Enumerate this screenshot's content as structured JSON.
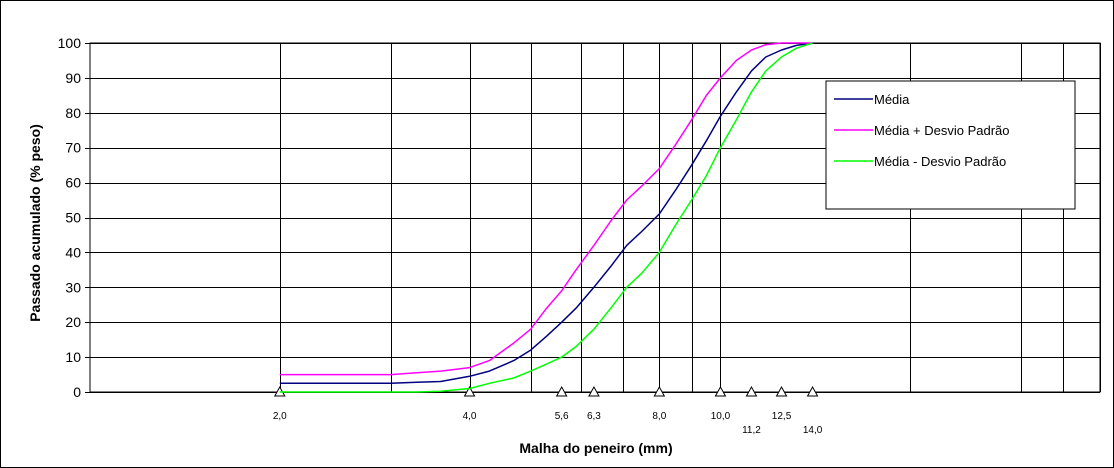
{
  "chart_data": {
    "type": "line",
    "title": "",
    "xlabel": "Malha do peneiro (mm)",
    "ylabel": "Passado acumulado (% peso)",
    "x_scale": "log",
    "xlim": [
      1.0,
      40.0
    ],
    "ylim": [
      0,
      100
    ],
    "y_ticks": [
      "0",
      "10",
      "20",
      "30",
      "40",
      "50",
      "60",
      "70",
      "80",
      "90",
      "100"
    ],
    "sieve_markers": [
      {
        "x": 2.0,
        "label": "2,0"
      },
      {
        "x": 4.0,
        "label": "4,0"
      },
      {
        "x": 5.6,
        "label": "5,6"
      },
      {
        "x": 6.3,
        "label": "6,3"
      },
      {
        "x": 8.0,
        "label": "8,0"
      },
      {
        "x": 10.0,
        "label": "10,0"
      },
      {
        "x": 11.2,
        "label": "11,2"
      },
      {
        "x": 12.5,
        "label": "12,5"
      },
      {
        "x": 14.0,
        "label": "14,0"
      }
    ],
    "vertical_gridlines_x": [
      2.0,
      3.0,
      4.0,
      5.0,
      6.0,
      7.0,
      8.0,
      9.0,
      10.0,
      20.0,
      30.0,
      35.0,
      40.0
    ],
    "grid": true,
    "legend_position": "top-right",
    "series": [
      {
        "name": "Média",
        "color": "#000080",
        "x": [
          2.0,
          3.0,
          3.3,
          3.6,
          4.0,
          4.3,
          4.7,
          5.0,
          5.3,
          5.6,
          5.9,
          6.3,
          6.7,
          7.1,
          7.5,
          8.0,
          8.5,
          9.0,
          9.5,
          10.0,
          10.6,
          11.2,
          11.8,
          12.5,
          13.2,
          14.0
        ],
        "y": [
          2.5,
          2.5,
          2.8,
          3.0,
          4.5,
          6.0,
          9.0,
          12.0,
          16.0,
          20.0,
          24.0,
          30.0,
          36.0,
          42.0,
          46.0,
          51.0,
          58.0,
          65.0,
          72.0,
          79.0,
          86.0,
          92.0,
          96.0,
          98.0,
          99.3,
          100.0
        ]
      },
      {
        "name": "Média + Desvio Padrão",
        "color": "#FF00FF",
        "x": [
          2.0,
          3.0,
          3.3,
          3.6,
          4.0,
          4.3,
          4.7,
          5.0,
          5.3,
          5.6,
          5.9,
          6.3,
          6.7,
          7.1,
          7.5,
          8.0,
          8.5,
          9.0,
          9.5,
          10.0,
          10.6,
          11.2,
          11.8,
          12.5,
          13.2,
          14.0
        ],
        "y": [
          5.0,
          5.0,
          5.5,
          6.0,
          7.0,
          9.0,
          14.0,
          18.0,
          24.0,
          29.0,
          35.0,
          42.0,
          49.0,
          55.0,
          59.0,
          64.0,
          71.0,
          78.0,
          85.0,
          90.0,
          95.0,
          98.0,
          99.5,
          100.0,
          100.0,
          100.0
        ]
      },
      {
        "name": "Média - Desvio Padrão",
        "color": "#00FF00",
        "x": [
          2.0,
          3.0,
          3.3,
          3.6,
          4.0,
          4.3,
          4.7,
          5.0,
          5.3,
          5.6,
          5.9,
          6.3,
          6.7,
          7.1,
          7.5,
          8.0,
          8.5,
          9.0,
          9.5,
          10.0,
          10.6,
          11.2,
          11.8,
          12.5,
          13.2,
          14.0
        ],
        "y": [
          0.0,
          0.0,
          0.0,
          0.2,
          1.0,
          2.5,
          4.0,
          6.0,
          8.0,
          10.0,
          13.0,
          18.0,
          24.0,
          30.0,
          34.0,
          40.0,
          48.0,
          55.0,
          62.0,
          70.0,
          78.0,
          86.0,
          92.0,
          96.0,
          98.5,
          100.0
        ]
      }
    ]
  }
}
